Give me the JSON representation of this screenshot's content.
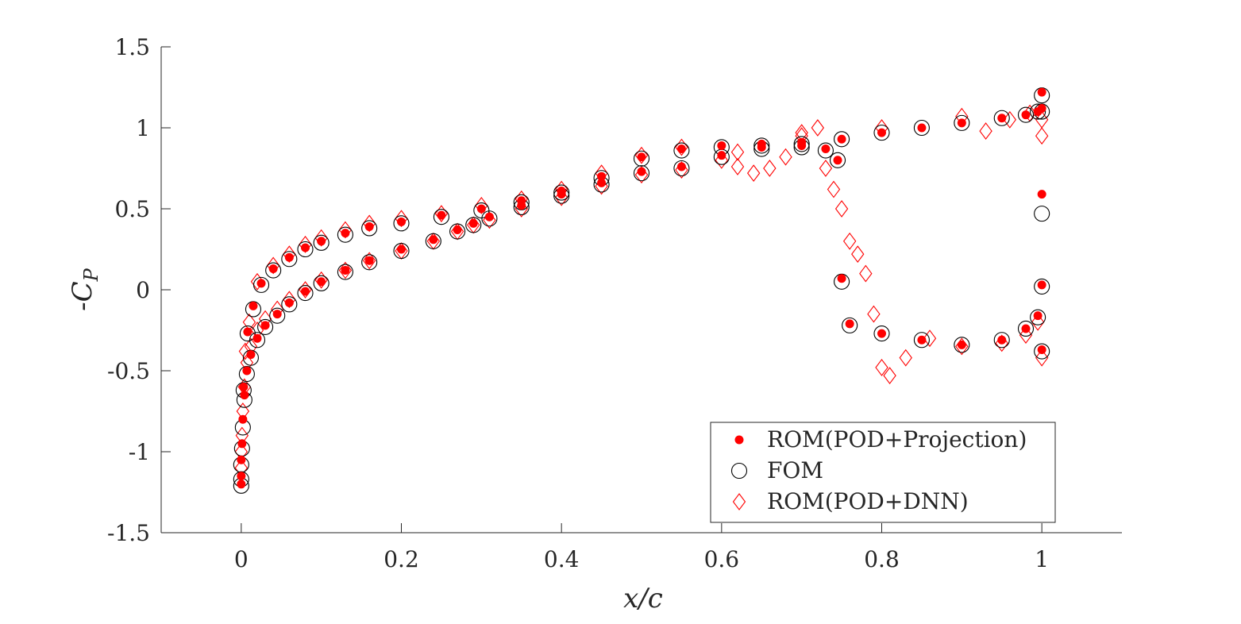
{
  "chart_data": {
    "type": "scatter",
    "title": "",
    "xlabel": "x/c",
    "ylabel": "-C_P",
    "xlim": [
      -0.1,
      1.1
    ],
    "ylim": [
      -1.5,
      1.5
    ],
    "xticks": [
      0,
      0.2,
      0.4,
      0.6,
      0.8,
      1
    ],
    "xtick_labels": [
      "0",
      "0.2",
      "0.4",
      "0.6",
      "0.8",
      "1"
    ],
    "yticks": [
      -1.5,
      -1,
      -0.5,
      0,
      0.5,
      1,
      1.5
    ],
    "ytick_labels": [
      "-1.5",
      "-1",
      "-0.5",
      "0",
      "0.5",
      "1",
      "1.5"
    ],
    "grid": false,
    "legend_position": "bottom-right",
    "series": [
      {
        "name": "ROM(POD+Projection)",
        "marker": "filled-circle",
        "color": "#ff0000",
        "x": [
          0.0,
          0.0,
          0.0,
          0.001,
          0.002,
          0.004,
          0.007,
          0.012,
          0.02,
          0.03,
          0.045,
          0.06,
          0.08,
          0.1,
          0.13,
          0.16,
          0.2,
          0.24,
          0.27,
          0.29,
          0.31,
          0.35,
          0.4,
          0.45,
          0.5,
          0.55,
          0.6,
          0.65,
          0.7,
          0.73,
          0.745,
          0.75,
          0.76,
          0.8,
          0.85,
          0.9,
          0.95,
          0.98,
          0.995,
          1.0,
          1.0,
          1.0,
          1.0,
          1.0,
          0.003,
          0.008,
          0.015,
          0.025,
          0.04,
          0.06,
          0.08,
          0.1,
          0.13,
          0.16,
          0.2,
          0.25,
          0.3,
          0.35,
          0.4,
          0.45,
          0.5,
          0.55,
          0.6,
          0.65,
          0.7,
          0.75,
          0.8,
          0.85,
          0.9,
          0.95,
          0.98,
          0.995
        ],
        "y": [
          -1.2,
          -1.15,
          -1.05,
          -0.95,
          -0.8,
          -0.65,
          -0.5,
          -0.4,
          -0.3,
          -0.22,
          -0.15,
          -0.08,
          -0.01,
          0.05,
          0.12,
          0.18,
          0.25,
          0.31,
          0.37,
          0.41,
          0.45,
          0.52,
          0.59,
          0.66,
          0.73,
          0.76,
          0.83,
          0.88,
          0.89,
          0.87,
          0.8,
          0.07,
          -0.21,
          -0.27,
          -0.31,
          -0.34,
          -0.31,
          -0.24,
          -0.16,
          -0.37,
          0.03,
          0.59,
          1.12,
          1.22,
          -0.6,
          -0.26,
          -0.1,
          0.04,
          0.13,
          0.2,
          0.26,
          0.3,
          0.35,
          0.39,
          0.42,
          0.46,
          0.5,
          0.55,
          0.61,
          0.7,
          0.82,
          0.87,
          0.89,
          0.9,
          0.91,
          0.93,
          0.97,
          1.0,
          1.03,
          1.06,
          1.08,
          1.1
        ]
      },
      {
        "name": "FOM",
        "marker": "open-circle",
        "color": "#000000",
        "x": [
          0.0,
          0.0,
          0.0,
          0.001,
          0.002,
          0.004,
          0.007,
          0.012,
          0.02,
          0.03,
          0.045,
          0.06,
          0.08,
          0.1,
          0.13,
          0.16,
          0.2,
          0.24,
          0.27,
          0.29,
          0.31,
          0.35,
          0.4,
          0.45,
          0.5,
          0.55,
          0.6,
          0.65,
          0.7,
          0.73,
          0.745,
          0.75,
          0.76,
          0.8,
          0.85,
          0.9,
          0.95,
          0.98,
          0.995,
          1.0,
          1.0,
          1.0,
          1.0,
          1.0,
          0.003,
          0.008,
          0.015,
          0.025,
          0.04,
          0.06,
          0.08,
          0.1,
          0.13,
          0.16,
          0.2,
          0.25,
          0.3,
          0.35,
          0.4,
          0.45,
          0.5,
          0.55,
          0.6,
          0.65,
          0.7,
          0.75,
          0.8,
          0.85,
          0.9,
          0.95,
          0.98,
          0.995
        ],
        "y": [
          -1.21,
          -1.17,
          -1.08,
          -0.98,
          -0.85,
          -0.68,
          -0.52,
          -0.42,
          -0.31,
          -0.23,
          -0.16,
          -0.09,
          -0.02,
          0.04,
          0.11,
          0.17,
          0.24,
          0.3,
          0.36,
          0.4,
          0.44,
          0.51,
          0.58,
          0.65,
          0.72,
          0.75,
          0.82,
          0.87,
          0.88,
          0.86,
          0.8,
          0.05,
          -0.22,
          -0.27,
          -0.31,
          -0.34,
          -0.31,
          -0.24,
          -0.17,
          -0.38,
          0.02,
          0.47,
          1.1,
          1.2,
          -0.62,
          -0.27,
          -0.12,
          0.03,
          0.12,
          0.19,
          0.25,
          0.29,
          0.34,
          0.38,
          0.41,
          0.45,
          0.49,
          0.54,
          0.6,
          0.69,
          0.81,
          0.86,
          0.88,
          0.89,
          0.9,
          0.93,
          0.97,
          1.0,
          1.03,
          1.06,
          1.08,
          1.1
        ]
      },
      {
        "name": "ROM(POD+DNN)",
        "marker": "open-diamond",
        "color": "#ff0000",
        "x": [
          0.0,
          0.0,
          0.001,
          0.002,
          0.004,
          0.007,
          0.012,
          0.02,
          0.03,
          0.045,
          0.06,
          0.08,
          0.1,
          0.13,
          0.16,
          0.2,
          0.24,
          0.27,
          0.29,
          0.31,
          0.35,
          0.4,
          0.45,
          0.5,
          0.55,
          0.6,
          0.62,
          0.64,
          0.66,
          0.68,
          0.7,
          0.72,
          0.73,
          0.74,
          0.75,
          0.76,
          0.77,
          0.78,
          0.79,
          0.8,
          0.81,
          0.83,
          0.86,
          0.9,
          0.95,
          0.98,
          0.995,
          1.0,
          1.0,
          1.0,
          0.005,
          0.01,
          0.02,
          0.04,
          0.06,
          0.08,
          0.1,
          0.13,
          0.16,
          0.2,
          0.25,
          0.3,
          0.35,
          0.4,
          0.45,
          0.5,
          0.55,
          0.62,
          0.7,
          0.8,
          0.9,
          0.93,
          0.96,
          0.985
        ],
        "y": [
          -1.1,
          -1.0,
          -0.9,
          -0.75,
          -0.6,
          -0.45,
          -0.35,
          -0.25,
          -0.18,
          -0.12,
          -0.06,
          0.0,
          0.06,
          0.12,
          0.18,
          0.24,
          0.3,
          0.36,
          0.4,
          0.43,
          0.5,
          0.57,
          0.64,
          0.71,
          0.74,
          0.8,
          0.76,
          0.72,
          0.75,
          0.82,
          0.95,
          1.0,
          0.75,
          0.62,
          0.5,
          0.3,
          0.22,
          0.1,
          -0.15,
          -0.48,
          -0.53,
          -0.42,
          -0.3,
          -0.35,
          -0.33,
          -0.28,
          -0.2,
          -0.42,
          0.95,
          1.05,
          -0.38,
          -0.2,
          0.05,
          0.15,
          0.22,
          0.28,
          0.32,
          0.37,
          0.41,
          0.44,
          0.47,
          0.52,
          0.56,
          0.62,
          0.72,
          0.83,
          0.88,
          0.85,
          0.97,
          1.0,
          1.07,
          0.98,
          1.05,
          1.09
        ]
      }
    ]
  }
}
